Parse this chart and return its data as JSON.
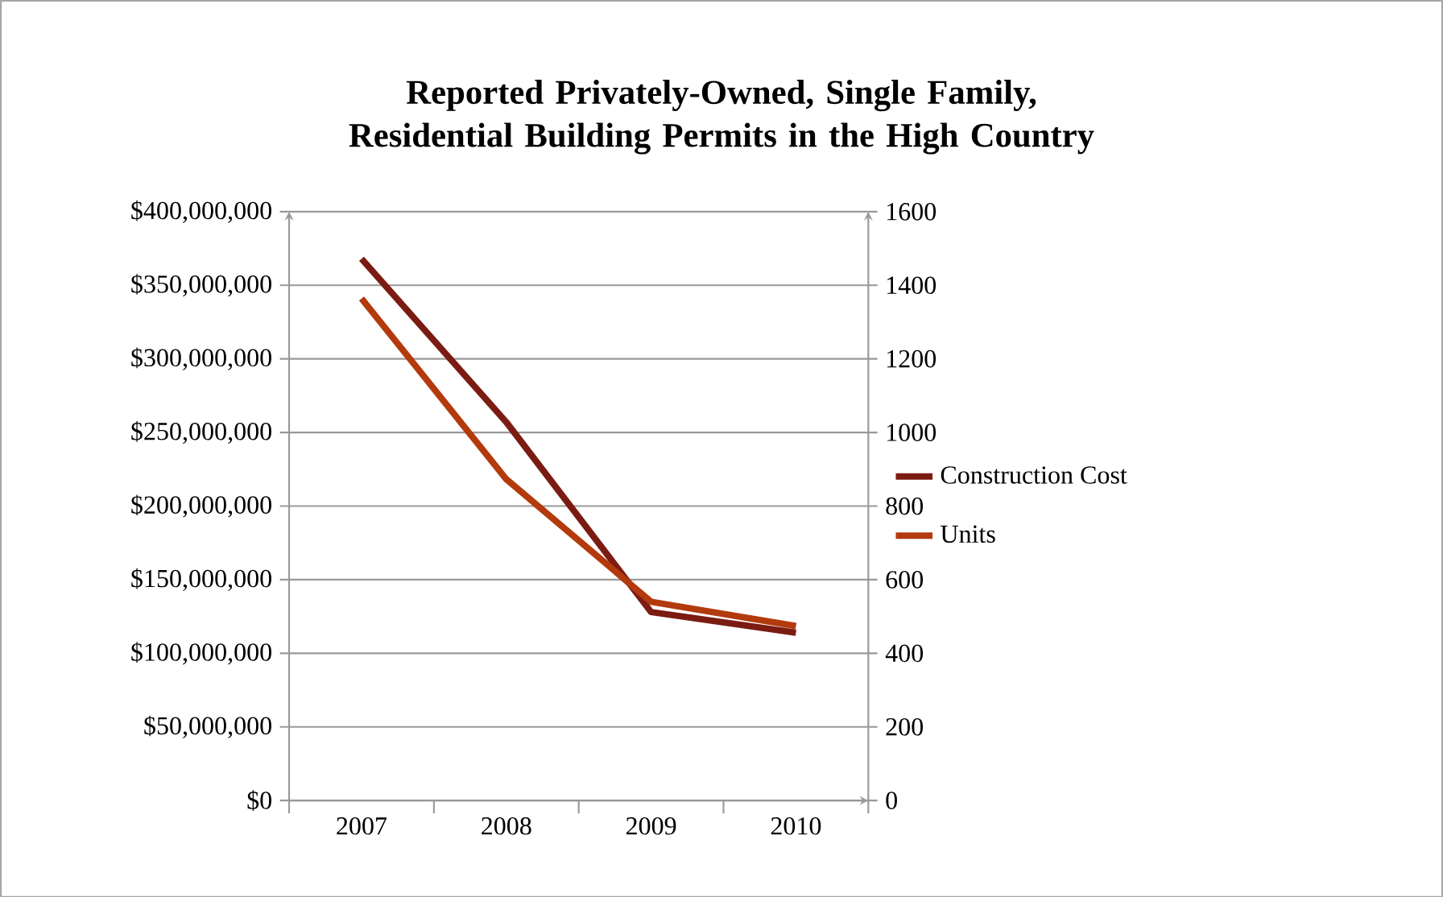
{
  "chart_data": {
    "type": "line",
    "title": "Reported Privately-Owned, Single Family, Residential Building Permits in the High Country",
    "categories": [
      "2007",
      "2008",
      "2009",
      "2010"
    ],
    "series": [
      {
        "name": "Construction Cost",
        "color": "#7b1c12",
        "values": [
          368000000,
          257000000,
          128000000,
          114000000
        ]
      },
      {
        "name": "Units",
        "color": "#b33a0c",
        "axis": "y2",
        "values": [
          1364,
          873,
          540,
          474
        ]
      }
    ],
    "ylim": [
      0,
      400000000
    ],
    "yticks": [
      {
        "value": 0,
        "label": "$0"
      },
      {
        "value": 50000000,
        "label": "$50,000,000"
      },
      {
        "value": 100000000,
        "label": "$100,000,000"
      },
      {
        "value": 150000000,
        "label": "$150,000,000"
      },
      {
        "value": 200000000,
        "label": "$200,000,000"
      },
      {
        "value": 250000000,
        "label": "$250,000,000"
      },
      {
        "value": 300000000,
        "label": "$300,000,000"
      },
      {
        "value": 350000000,
        "label": "$350,000,000"
      },
      {
        "value": 400000000,
        "label": "$400,000,000"
      }
    ],
    "y2lim": [
      0,
      1600
    ],
    "y2ticks": [
      0,
      200,
      400,
      600,
      800,
      1000,
      1200,
      1400,
      1600
    ],
    "grid": "y",
    "legend": "right",
    "marker": "none",
    "line_style": "solid"
  }
}
